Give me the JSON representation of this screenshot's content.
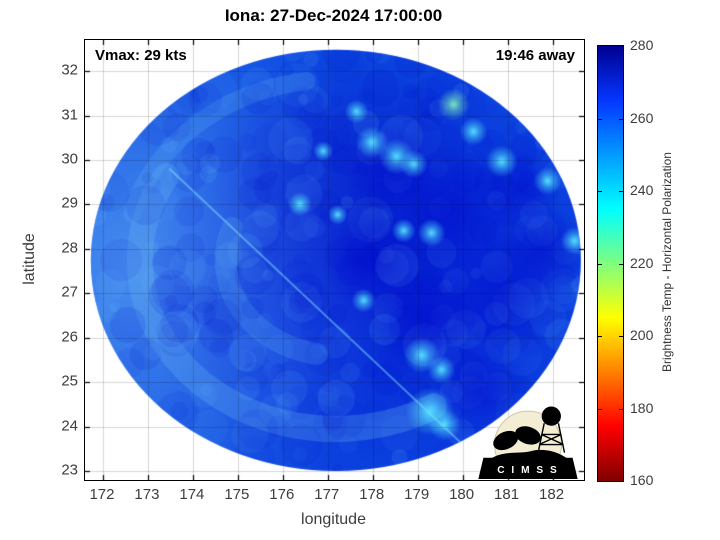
{
  "title": "Iona: 27-Dec-2024 17:00:00",
  "annotations": {
    "vmax": "Vmax: 29 kts",
    "timing": "19:46 away"
  },
  "logo": {
    "name": "CIMSS",
    "banner_text": "C I M S S"
  },
  "chart_data": {
    "type": "heatmap",
    "title": "Iona: 27-Dec-2024 17:00:00",
    "xlabel": "longitude",
    "ylabel": "latitude",
    "xlim": [
      171.6,
      182.7
    ],
    "ylim": [
      22.8,
      32.7
    ],
    "xticks": [
      172,
      173,
      174,
      175,
      176,
      177,
      178,
      179,
      180,
      181,
      182
    ],
    "yticks": [
      23,
      24,
      25,
      26,
      27,
      28,
      29,
      30,
      31,
      32
    ],
    "grid": true,
    "colorbar": {
      "label": "Brightness Temp - Horizontal Polarization",
      "range": [
        160,
        280
      ],
      "ticks": [
        160,
        180,
        200,
        220,
        240,
        260,
        280
      ],
      "stops": [
        {
          "pct": 0,
          "color": "#7f0000"
        },
        {
          "pct": 12.5,
          "color": "#ff0000"
        },
        {
          "pct": 37.5,
          "color": "#ffff00"
        },
        {
          "pct": 62.5,
          "color": "#00ffff"
        },
        {
          "pct": 87.5,
          "color": "#0536ff"
        },
        {
          "pct": 100,
          "color": "#00008f"
        }
      ]
    },
    "swath": {
      "description": "Microwave brightness temperature swath, mostly 240-280 K (blues) with isolated colder convective spots",
      "center_lon": 177.18,
      "center_lat": 27.74,
      "radius_lon": 5.45,
      "radius_lat": 4.74,
      "base_color": "#0d4ce2",
      "deep_color": "#0208cd",
      "light_color": "#66b4f2",
      "spot_color": "#55e6ff",
      "bright_spots": [
        {
          "lon": 178.53,
          "lat": 30.08,
          "r": 9
        },
        {
          "lon": 178.91,
          "lat": 29.91,
          "r": 7
        },
        {
          "lon": 177.98,
          "lat": 30.4,
          "r": 8
        },
        {
          "lon": 179.8,
          "lat": 31.25,
          "r": 8,
          "color": "#7dedbb"
        },
        {
          "lon": 180.24,
          "lat": 30.64,
          "r": 7
        },
        {
          "lon": 180.87,
          "lat": 29.97,
          "r": 8
        },
        {
          "lon": 181.89,
          "lat": 29.53,
          "r": 7
        },
        {
          "lon": 182.49,
          "lat": 28.18,
          "r": 7
        },
        {
          "lon": 179.31,
          "lat": 28.36,
          "r": 7
        },
        {
          "lon": 178.69,
          "lat": 28.41,
          "r": 6
        },
        {
          "lon": 179.09,
          "lat": 25.61,
          "r": 9
        },
        {
          "lon": 179.53,
          "lat": 25.28,
          "r": 7
        },
        {
          "lon": 179.27,
          "lat": 24.34,
          "r": 12
        },
        {
          "lon": 179.6,
          "lat": 24.05,
          "r": 8
        },
        {
          "lon": 177.8,
          "lat": 26.84,
          "r": 6
        },
        {
          "lon": 176.38,
          "lat": 29.01,
          "r": 6
        },
        {
          "lon": 177.22,
          "lat": 28.77,
          "r": 5
        },
        {
          "lon": 177.64,
          "lat": 31.09,
          "r": 6
        },
        {
          "lon": 176.9,
          "lat": 30.2,
          "r": 5
        }
      ],
      "dark_patches": [
        {
          "lon": 179.76,
          "lat": 28.85,
          "r": 65
        },
        {
          "lon": 180.87,
          "lat": 27.07,
          "r": 60
        },
        {
          "lon": 179.31,
          "lat": 26.4,
          "r": 55
        },
        {
          "lon": 180.42,
          "lat": 24.83,
          "r": 50
        },
        {
          "lon": 178.42,
          "lat": 29.75,
          "r": 45
        },
        {
          "lon": 181.76,
          "lat": 27.96,
          "r": 45
        },
        {
          "lon": 177.98,
          "lat": 27.74,
          "r": 50
        },
        {
          "lon": 181.3,
          "lat": 29.3,
          "r": 40
        }
      ],
      "light_bands": [
        {
          "f": 0.8,
          "a0": 60,
          "a1": 210,
          "w": 26,
          "alpha": 0.3
        },
        {
          "f": 0.45,
          "a0": 100,
          "a1": 200,
          "w": 22,
          "alpha": 0.22
        },
        {
          "f": 0.86,
          "a0": 195,
          "a1": 262,
          "w": 18,
          "alpha": 0.22
        }
      ],
      "seams": [
        {
          "from": [
            173.49,
            29.79
          ],
          "to": [
            180.16,
            23.45
          ],
          "w": 2,
          "alpha": 0.5
        },
        {
          "from": [
            180.9,
            32.2
          ],
          "to": [
            182.6,
            29.8
          ],
          "w": 3,
          "alpha": 0.28
        }
      ]
    }
  }
}
